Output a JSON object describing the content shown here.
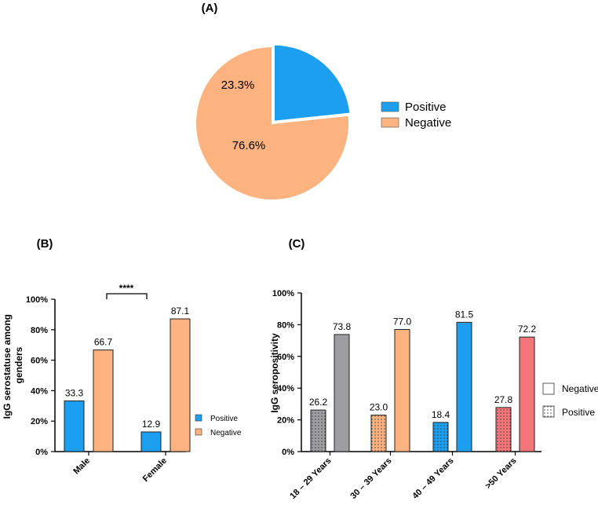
{
  "colors": {
    "positive": "#1C9FF1",
    "negative": "#FDB37F",
    "gray": "#9E9EA2",
    "orange": "#FDB37F",
    "blue": "#1C9FF1",
    "red": "#F4767A"
  },
  "chart_data": [
    {
      "type": "pie",
      "panel": "(A)",
      "slices": [
        {
          "label": "Positive",
          "value": 23.3,
          "text": "23.3%"
        },
        {
          "label": "Negative",
          "value": 76.6,
          "text": "76.6%"
        }
      ],
      "legend": [
        "Positive",
        "Negative"
      ]
    },
    {
      "type": "bar",
      "panel": "(B)",
      "categories": [
        "Male",
        "Female"
      ],
      "series": [
        {
          "name": "Positive",
          "values": [
            33.3,
            12.9
          ],
          "labels": [
            "33.3",
            "12.9"
          ]
        },
        {
          "name": "Negative",
          "values": [
            66.7,
            87.1
          ],
          "labels": [
            "66.7",
            "87.1"
          ]
        }
      ],
      "ylabel": [
        "IgG serostatuse among",
        "genders"
      ],
      "ylim": [
        0,
        100
      ],
      "yticks": [
        "0%",
        "20%",
        "40%",
        "60%",
        "80%",
        "100%"
      ],
      "significance": "****"
    },
    {
      "type": "bar",
      "panel": "(C)",
      "categories": [
        "18 – 29 Years",
        "30 – 39 Years",
        "40 – 49 Years",
        ">50 Years"
      ],
      "positive": [
        26.2,
        23.0,
        18.4,
        27.8
      ],
      "positive_labels": [
        "26.2",
        "23.0",
        "18.4",
        "27.8"
      ],
      "negative": [
        73.8,
        77.0,
        81.5,
        72.2
      ],
      "negative_labels": [
        "73.8",
        "77.0",
        "81.5",
        "72.2"
      ],
      "ylabel": "IgG seropositivity",
      "ylim": [
        0,
        100
      ],
      "yticks": [
        "0%",
        "20%",
        "40%",
        "60%",
        "80%",
        "100%"
      ],
      "legend": [
        "Negative",
        "Positive"
      ]
    }
  ]
}
